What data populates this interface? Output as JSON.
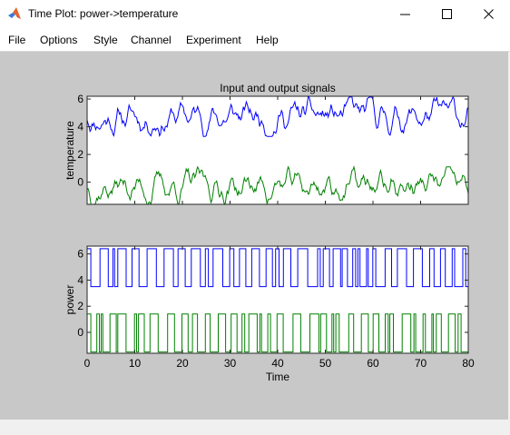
{
  "window": {
    "title": "Time Plot: power->temperature"
  },
  "menu": [
    "File",
    "Options",
    "Style",
    "Channel",
    "Experiment",
    "Help"
  ],
  "chart_data": [
    {
      "type": "line",
      "title": "Input and output signals",
      "ylabel": "temperature",
      "xlim": [
        0,
        80
      ],
      "ylim": [
        -1.6,
        6.2
      ],
      "yticks": [
        0,
        2,
        4,
        6
      ],
      "xtick_labels_shown": false,
      "grid": false,
      "series": [
        {
          "color": "#0000ff",
          "offset": 4.7,
          "amp": 0.85,
          "min": 3.3,
          "max": 6.2,
          "seed": 11
        },
        {
          "color": "#008000",
          "offset": -0.3,
          "amp": 0.85,
          "min": -1.6,
          "max": 1.2,
          "seed": 37
        }
      ]
    },
    {
      "type": "line",
      "ylabel": "power",
      "xlabel": "Time",
      "xlim": [
        0,
        80
      ],
      "ylim": [
        -1.6,
        6.6
      ],
      "xticks": [
        0,
        10,
        20,
        30,
        40,
        50,
        60,
        70,
        80
      ],
      "yticks": [
        0,
        2,
        4,
        6
      ],
      "grid": false,
      "series": [
        {
          "color": "#0000ff",
          "low": 3.5,
          "high": 6.4,
          "seed": 73
        },
        {
          "color": "#008000",
          "low": -1.5,
          "high": 1.4,
          "seed": 91
        }
      ]
    }
  ]
}
